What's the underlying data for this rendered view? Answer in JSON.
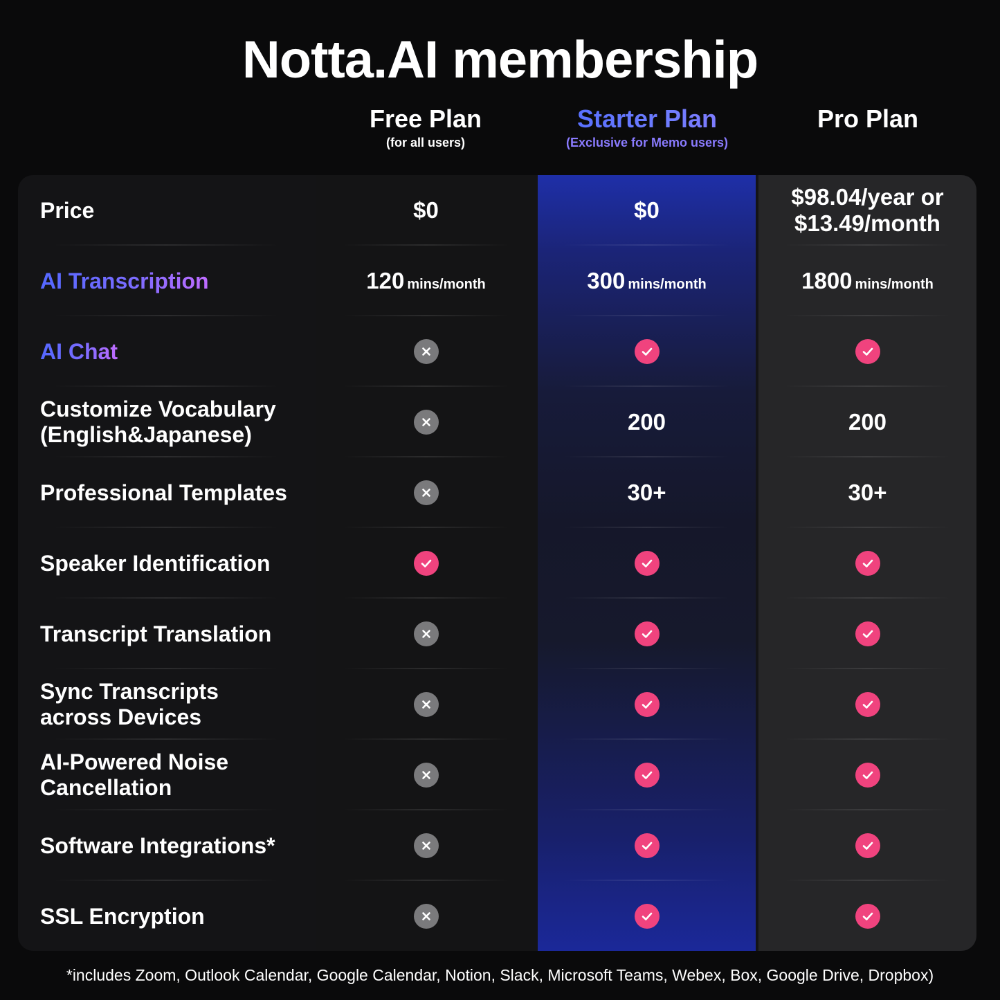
{
  "title": "Notta.AI membership",
  "plans": {
    "free": {
      "name": "Free Plan",
      "sub": "(for all users)"
    },
    "starter": {
      "name": "Starter Plan",
      "sub": "(Exclusive for Memo users)"
    },
    "pro": {
      "name": "Pro Plan",
      "sub": ""
    }
  },
  "colors": {
    "accent_blue": "#4f6bff",
    "check": "#f0437e",
    "cross": "#7a7a7c"
  },
  "rows": [
    {
      "feature": "Price",
      "style": "plain",
      "free": {
        "type": "text",
        "text": "$0"
      },
      "starter": {
        "type": "text",
        "text": "$0"
      },
      "pro": {
        "type": "price",
        "line1": "$98.04/year or",
        "line2": "$13.49/month"
      }
    },
    {
      "feature": "AI Transcription",
      "style": "gradient",
      "free": {
        "type": "mins",
        "num": "120",
        "unit": "mins/month"
      },
      "starter": {
        "type": "mins",
        "num": "300",
        "unit": "mins/month"
      },
      "pro": {
        "type": "mins",
        "num": "1800",
        "unit": "mins/month"
      }
    },
    {
      "feature": "AI Chat",
      "style": "gradient",
      "free": {
        "type": "icon",
        "icon": "cross-icon"
      },
      "starter": {
        "type": "icon",
        "icon": "check-icon"
      },
      "pro": {
        "type": "icon",
        "icon": "check-icon"
      }
    },
    {
      "feature": "Customize Vocabulary (English&Japanese)",
      "line1": "Customize Vocabulary",
      "line2": "(English&Japanese)",
      "style": "plain",
      "free": {
        "type": "icon",
        "icon": "cross-icon"
      },
      "starter": {
        "type": "text",
        "text": "200"
      },
      "pro": {
        "type": "text",
        "text": "200"
      }
    },
    {
      "feature": "Professional Templates",
      "style": "plain",
      "free": {
        "type": "icon",
        "icon": "cross-icon"
      },
      "starter": {
        "type": "text",
        "text": "30+"
      },
      "pro": {
        "type": "text",
        "text": "30+"
      }
    },
    {
      "feature": "Speaker Identification",
      "style": "plain",
      "free": {
        "type": "icon",
        "icon": "check-icon"
      },
      "starter": {
        "type": "icon",
        "icon": "check-icon"
      },
      "pro": {
        "type": "icon",
        "icon": "check-icon"
      }
    },
    {
      "feature": "Transcript Translation",
      "style": "plain",
      "free": {
        "type": "icon",
        "icon": "cross-icon"
      },
      "starter": {
        "type": "icon",
        "icon": "check-icon"
      },
      "pro": {
        "type": "icon",
        "icon": "check-icon"
      }
    },
    {
      "feature": "Sync Transcripts across Devices",
      "line1": "Sync Transcripts",
      "line2": "across Devices",
      "style": "plain",
      "free": {
        "type": "icon",
        "icon": "cross-icon"
      },
      "starter": {
        "type": "icon",
        "icon": "check-icon"
      },
      "pro": {
        "type": "icon",
        "icon": "check-icon"
      }
    },
    {
      "feature": "AI-Powered Noise Cancellation",
      "line1": "AI-Powered Noise",
      "line2": "Cancellation",
      "style": "plain",
      "free": {
        "type": "icon",
        "icon": "cross-icon"
      },
      "starter": {
        "type": "icon",
        "icon": "check-icon"
      },
      "pro": {
        "type": "icon",
        "icon": "check-icon"
      }
    },
    {
      "feature": "Software Integrations*",
      "style": "plain",
      "free": {
        "type": "icon",
        "icon": "cross-icon"
      },
      "starter": {
        "type": "icon",
        "icon": "check-icon"
      },
      "pro": {
        "type": "icon",
        "icon": "check-icon"
      }
    },
    {
      "feature": "SSL Encryption",
      "style": "plain",
      "free": {
        "type": "icon",
        "icon": "cross-icon"
      },
      "starter": {
        "type": "icon",
        "icon": "check-icon"
      },
      "pro": {
        "type": "icon",
        "icon": "check-icon"
      }
    }
  ],
  "footnote": "*includes Zoom, Outlook Calendar, Google Calendar, Notion, Slack, Microsoft Teams, Webex, Box, Google Drive, Dropbox)"
}
